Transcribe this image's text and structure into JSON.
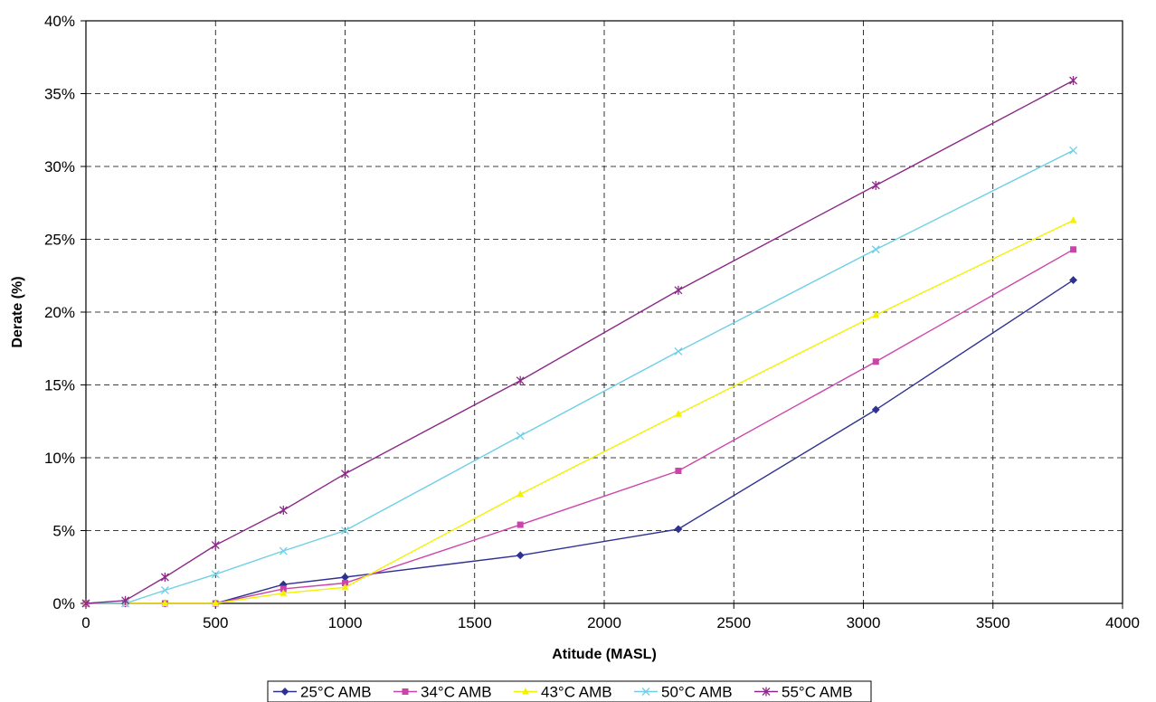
{
  "chart_data": {
    "type": "line",
    "xlabel": "Atitude (MASL)",
    "ylabel": "Derate (%)",
    "xlim": [
      0,
      4000
    ],
    "ylim": [
      0,
      0.4
    ],
    "x_ticks": [
      0,
      500,
      1000,
      1500,
      2000,
      2500,
      3000,
      3500,
      4000
    ],
    "y_ticks": [
      "0%",
      "5%",
      "10%",
      "15%",
      "20%",
      "25%",
      "30%",
      "35%",
      "40%"
    ],
    "y_tick_values": [
      0,
      0.05,
      0.1,
      0.15,
      0.2,
      0.25,
      0.3,
      0.35,
      0.4
    ],
    "grid": true,
    "legend_position": "bottom",
    "series": [
      {
        "name": "25°C AMB",
        "color": "#2E3192",
        "marker": "diamond",
        "x": [
          0,
          152,
          305,
          500,
          762,
          1000,
          1676,
          2286,
          3048,
          3810
        ],
        "y": [
          0,
          0,
          0,
          0,
          0.013,
          0.018,
          0.033,
          0.051,
          0.133,
          0.222
        ]
      },
      {
        "name": "34°C AMB",
        "color": "#CC44AA",
        "marker": "square",
        "x": [
          0,
          152,
          305,
          500,
          762,
          1000,
          1676,
          2286,
          3048,
          3810
        ],
        "y": [
          0,
          0,
          0,
          0,
          0.01,
          0.014,
          0.054,
          0.091,
          0.166,
          0.243
        ]
      },
      {
        "name": "43°C AMB",
        "color": "#F2F200",
        "marker": "triangle",
        "x": [
          0,
          152,
          305,
          500,
          762,
          1000,
          1676,
          2286,
          3048,
          3810
        ],
        "y": [
          0,
          0,
          0,
          0,
          0.007,
          0.011,
          0.075,
          0.13,
          0.198,
          0.263
        ]
      },
      {
        "name": "50°C AMB",
        "color": "#6ECFE6",
        "marker": "x",
        "x": [
          0,
          152,
          305,
          500,
          762,
          1000,
          1676,
          2286,
          3048,
          3810
        ],
        "y": [
          0,
          0,
          0.009,
          0.02,
          0.036,
          0.05,
          0.115,
          0.173,
          0.243,
          0.311
        ]
      },
      {
        "name": "55°C AMB",
        "color": "#8B2A86",
        "marker": "star",
        "x": [
          0,
          152,
          305,
          500,
          762,
          1000,
          1676,
          2286,
          3048,
          3810
        ],
        "y": [
          0,
          0.002,
          0.018,
          0.04,
          0.064,
          0.089,
          0.153,
          0.215,
          0.287,
          0.359
        ]
      }
    ]
  }
}
